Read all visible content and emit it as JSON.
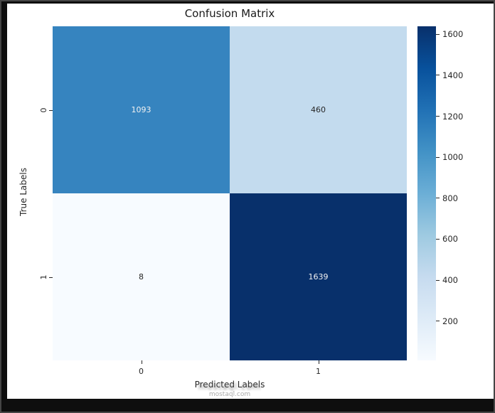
{
  "window": {
    "background_color": "#0e0e0e",
    "figure_background_color": "#ffffff"
  },
  "chart_data": {
    "type": "heatmap",
    "title": "Confusion Matrix",
    "xlabel": "Predicted Labels",
    "ylabel": "True Labels",
    "x_ticklabels": [
      "0",
      "1"
    ],
    "y_ticklabels": [
      "0",
      "1"
    ],
    "matrix": [
      [
        1093,
        460
      ],
      [
        8,
        1639
      ]
    ],
    "cells": [
      {
        "row": 0,
        "col": 0,
        "value": "1093",
        "style": "background:#3684bf;color:#f2f2f2"
      },
      {
        "row": 0,
        "col": 1,
        "value": "460",
        "style": "background:#c3dbee;color:#262626"
      },
      {
        "row": 1,
        "col": 0,
        "value": "8",
        "style": "background:#f7fbff;color:#262626"
      },
      {
        "row": 1,
        "col": 1,
        "value": "1639",
        "style": "background:#08306b;color:#f2f2f2"
      }
    ],
    "colormap": "Blues",
    "grid": false,
    "legend": "colorbar-right",
    "colorbar": {
      "vmin": 8,
      "vmax": 1639,
      "ticks": [
        200,
        400,
        600,
        800,
        1000,
        1200,
        1400,
        1600
      ],
      "gradient_bottom_to_top": [
        "#f7fbff",
        "#deebf7",
        "#c6dbef",
        "#9ecae1",
        "#6baed6",
        "#4292c6",
        "#2171b5",
        "#08519c",
        "#08306b"
      ]
    }
  },
  "watermark": {
    "text": "mostaql.com"
  }
}
